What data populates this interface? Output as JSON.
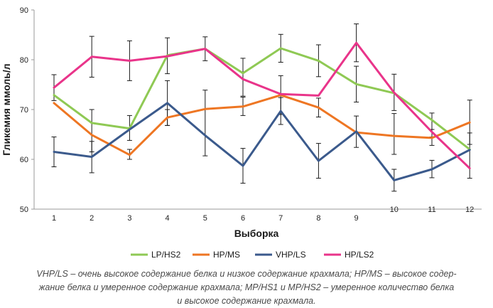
{
  "chart_data": {
    "type": "line",
    "title": "",
    "xlabel": "Выборка",
    "ylabel": "Гликемия ммоль/л",
    "ylim": [
      50,
      90
    ],
    "yticks": [
      "50",
      "60",
      "70",
      "80",
      "90"
    ],
    "categories": [
      "1",
      "2",
      "3",
      "4",
      "5",
      "6",
      "7",
      "8",
      "9",
      "10",
      "11",
      "12"
    ],
    "grid": false,
    "error_bars": true,
    "legend_position": "bottom",
    "series": [
      {
        "name": "LP/HS2",
        "color": "#8fc954",
        "values": [
          72.9,
          67.3,
          66.2,
          80.9,
          82.2,
          77.3,
          82.3,
          79.8,
          75.1,
          73.3,
          67.9,
          62.0
        ]
      },
      {
        "name": "HP/MS",
        "color": "#ee7623",
        "values": [
          71.3,
          64.9,
          60.9,
          68.4,
          70.1,
          70.6,
          72.9,
          70.4,
          65.4,
          64.7,
          64.3,
          67.4
        ]
      },
      {
        "name": "VHP/LS",
        "color": "#3b5a8c",
        "values": [
          61.5,
          60.5,
          66.0,
          71.3,
          64.8,
          58.7,
          69.7,
          59.7,
          65.6,
          55.8,
          58.0,
          61.9
        ]
      },
      {
        "name": "HP/LS2",
        "color": "#e9348a",
        "values": [
          74.4,
          80.6,
          79.8,
          80.7,
          82.2,
          76.1,
          73.1,
          72.8,
          83.4,
          73.4,
          65.5,
          58.2
        ]
      }
    ],
    "error_bars_data": [
      {
        "x_index": 0,
        "center": 74.4,
        "low": 71.8,
        "high": 77.0
      },
      {
        "x_index": 0,
        "center": 61.5,
        "low": 58.5,
        "high": 64.5
      },
      {
        "x_index": 1,
        "center": 80.6,
        "low": 76.5,
        "high": 84.7
      },
      {
        "x_index": 1,
        "center": 65.0,
        "low": 61.5,
        "high": 70.0
      },
      {
        "x_index": 1,
        "center": 60.5,
        "low": 57.3,
        "high": 63.6
      },
      {
        "x_index": 2,
        "center": 79.8,
        "low": 75.8,
        "high": 83.8
      },
      {
        "x_index": 2,
        "center": 66.0,
        "low": 63.8,
        "high": 68.8
      },
      {
        "x_index": 2,
        "center": 61.0,
        "low": 60.0,
        "high": 62.0
      },
      {
        "x_index": 3,
        "center": 80.8,
        "low": 77.2,
        "high": 84.4
      },
      {
        "x_index": 3,
        "center": 71.3,
        "low": 66.8,
        "high": 75.8
      },
      {
        "x_index": 3,
        "center": 68.4,
        "low": 66.8,
        "high": 70.0
      },
      {
        "x_index": 4,
        "center": 82.2,
        "low": 79.8,
        "high": 84.6
      },
      {
        "x_index": 4,
        "center": 64.8,
        "low": 60.7,
        "high": 73.9
      },
      {
        "x_index": 5,
        "center": 77.0,
        "low": 72.7,
        "high": 80.3
      },
      {
        "x_index": 5,
        "center": 58.7,
        "low": 55.2,
        "high": 62.2
      },
      {
        "x_index": 5,
        "center": 70.6,
        "low": 68.8,
        "high": 72.5
      },
      {
        "x_index": 6,
        "center": 82.3,
        "low": 79.5,
        "high": 85.1
      },
      {
        "x_index": 6,
        "center": 72.9,
        "low": 69.0,
        "high": 76.8
      },
      {
        "x_index": 6,
        "center": 69.7,
        "low": 67.0,
        "high": 72.4
      },
      {
        "x_index": 7,
        "center": 79.8,
        "low": 76.6,
        "high": 83.0
      },
      {
        "x_index": 7,
        "center": 70.4,
        "low": 68.5,
        "high": 72.3
      },
      {
        "x_index": 7,
        "center": 59.7,
        "low": 56.2,
        "high": 63.2
      },
      {
        "x_index": 8,
        "center": 83.4,
        "low": 79.6,
        "high": 87.2
      },
      {
        "x_index": 8,
        "center": 75.1,
        "low": 71.5,
        "high": 78.7
      },
      {
        "x_index": 8,
        "center": 65.5,
        "low": 62.4,
        "high": 68.7
      },
      {
        "x_index": 9,
        "center": 73.4,
        "low": 69.8,
        "high": 77.1
      },
      {
        "x_index": 9,
        "center": 64.7,
        "low": 61.0,
        "high": 69.2
      },
      {
        "x_index": 9,
        "center": 55.8,
        "low": 53.6,
        "high": 58.0
      },
      {
        "x_index": 10,
        "center": 67.9,
        "low": 64.5,
        "high": 69.3
      },
      {
        "x_index": 10,
        "center": 64.3,
        "low": 62.8,
        "high": 66.0
      },
      {
        "x_index": 10,
        "center": 58.0,
        "low": 56.3,
        "high": 59.8
      },
      {
        "x_index": 11,
        "center": 67.4,
        "low": 63.0,
        "high": 71.9
      },
      {
        "x_index": 11,
        "center": 60.0,
        "low": 56.2,
        "high": 65.3
      }
    ]
  },
  "caption": {
    "lines": [
      "VHP/LS – очень высокое содержание белка и низкое содержание крахмала; HP/MS – высокое содер-",
      "жание белка и умеренное содержание крахмала; MP/HS1 и MP/HS2 – умеренное количество белка",
      "и высокое содержание крахмала."
    ]
  }
}
